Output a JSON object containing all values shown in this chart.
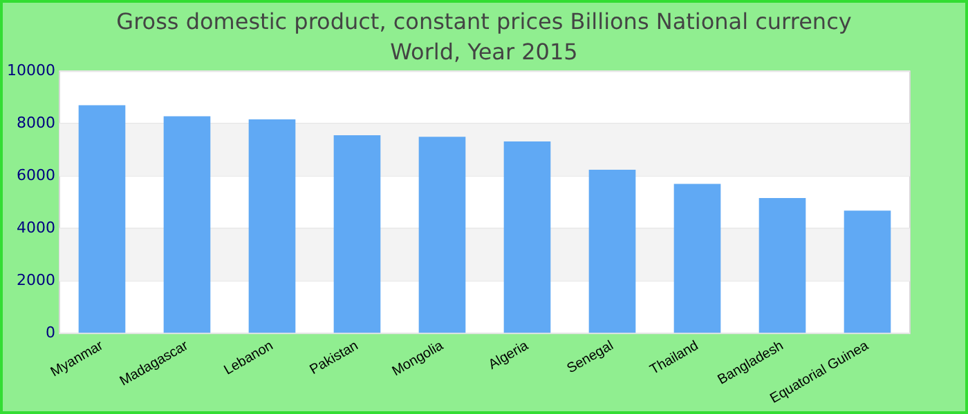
{
  "chart_data": {
    "type": "bar",
    "title": "Gross domestic product, constant prices Billions National currency",
    "subtitle": "World, Year 2015",
    "categories": [
      "Myanmar",
      "Madagascar",
      "Lebanon",
      "Pakistan",
      "Mongolia",
      "Algeria",
      "Senegal",
      "Thailand",
      "Bangladesh",
      "Equatorial Guinea"
    ],
    "values": [
      8700,
      8280,
      8160,
      7560,
      7500,
      7320,
      6240,
      5700,
      5160,
      4680
    ],
    "color": "#60a9f4",
    "ylim": [
      0,
      10000
    ],
    "yticks": [
      0,
      2000,
      4000,
      6000,
      8000,
      10000
    ],
    "grid": "y",
    "legend": false
  }
}
